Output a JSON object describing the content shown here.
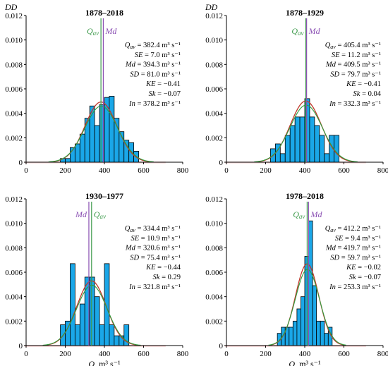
{
  "figure": {
    "y_label": "DD",
    "x_label": "Q, m³ s⁻¹",
    "x_ticks": [
      0,
      200,
      400,
      600,
      800
    ],
    "y_ticks": [
      "0",
      "0.002",
      "0.004",
      "0.006",
      "0.008",
      "0.010",
      "0.012"
    ]
  },
  "colors": {
    "bar_fill": "#1aa7e8",
    "bar_stroke": "#000000",
    "normal_curve": "#c0392b",
    "lognormal_curve": "#2e9e3e",
    "qav_line": "#3d9a4b",
    "md_line": "#8a4fb3"
  },
  "chart_data": [
    {
      "type": "bar",
      "title": "1878–2018",
      "xlim": [
        0,
        800
      ],
      "ylim": [
        0,
        0.012
      ],
      "bin_width": 25,
      "bins": [
        {
          "x": 175,
          "y": 0.0003
        },
        {
          "x": 200,
          "y": 0.0003
        },
        {
          "x": 225,
          "y": 0.0012
        },
        {
          "x": 250,
          "y": 0.0015
        },
        {
          "x": 275,
          "y": 0.0023
        },
        {
          "x": 300,
          "y": 0.0036
        },
        {
          "x": 325,
          "y": 0.0046
        },
        {
          "x": 350,
          "y": 0.003
        },
        {
          "x": 375,
          "y": 0.0047
        },
        {
          "x": 400,
          "y": 0.0053
        },
        {
          "x": 425,
          "y": 0.0054
        },
        {
          "x": 450,
          "y": 0.0036
        },
        {
          "x": 475,
          "y": 0.0025
        },
        {
          "x": 500,
          "y": 0.0018
        },
        {
          "x": 525,
          "y": 0.0016
        },
        {
          "x": 550,
          "y": 0.0009
        }
      ],
      "normal": {
        "mean": 382.4,
        "sd": 81.0
      },
      "qav": 382.4,
      "md": 394.3,
      "qav_label": "Qav",
      "md_label": "Md",
      "label_order": "qav-md",
      "stats": [
        "Qav = 382.4 m³ s⁻¹",
        "SE = 7.0 m³ s⁻¹",
        "Md = 394.3 m³ s⁻¹",
        "SD = 81.0 m³ s⁻¹",
        "KE = −0.41",
        "Sk = −0.07",
        "In = 378.2 m³ s⁻¹"
      ]
    },
    {
      "type": "bar",
      "title": "1878–1929",
      "xlim": [
        0,
        800
      ],
      "ylim": [
        0,
        0.012
      ],
      "bin_width": 25,
      "bins": [
        {
          "x": 225,
          "y": 0.0011
        },
        {
          "x": 250,
          "y": 0.0015
        },
        {
          "x": 275,
          "y": 0.0007
        },
        {
          "x": 300,
          "y": 0.0022
        },
        {
          "x": 325,
          "y": 0.003
        },
        {
          "x": 350,
          "y": 0.0037
        },
        {
          "x": 375,
          "y": 0.0037
        },
        {
          "x": 400,
          "y": 0.0052
        },
        {
          "x": 425,
          "y": 0.0037
        },
        {
          "x": 450,
          "y": 0.003
        },
        {
          "x": 475,
          "y": 0.0022
        },
        {
          "x": 500,
          "y": 0.0007
        },
        {
          "x": 525,
          "y": 0.0022
        },
        {
          "x": 550,
          "y": 0.0022
        }
      ],
      "normal": {
        "mean": 405.4,
        "sd": 79.7
      },
      "qav": 405.4,
      "md": 409.5,
      "qav_label": "Qav",
      "md_label": "Md",
      "label_order": "qav-md",
      "stats": [
        "Qav = 405.4 m³ s⁻¹",
        "SE = 11.2 m³ s⁻¹",
        "Md = 409.5 m³ s⁻¹",
        "SD = 79.7 m³ s⁻¹",
        "KE = −0.41",
        "Sk = 0.04",
        "In = 332.3 m³ s⁻¹"
      ]
    },
    {
      "type": "bar",
      "title": "1930–1977",
      "xlim": [
        0,
        800
      ],
      "ylim": [
        0,
        0.012
      ],
      "bin_width": 25,
      "bins": [
        {
          "x": 175,
          "y": 0.0017
        },
        {
          "x": 200,
          "y": 0.002
        },
        {
          "x": 225,
          "y": 0.0067
        },
        {
          "x": 250,
          "y": 0.0017
        },
        {
          "x": 275,
          "y": 0.0034
        },
        {
          "x": 300,
          "y": 0.0056
        },
        {
          "x": 325,
          "y": 0.0056
        },
        {
          "x": 350,
          "y": 0.004
        },
        {
          "x": 375,
          "y": 0.0017
        },
        {
          "x": 400,
          "y": 0.0067
        },
        {
          "x": 425,
          "y": 0.0017
        },
        {
          "x": 450,
          "y": 0.0008
        },
        {
          "x": 475,
          "y": 0.0008
        },
        {
          "x": 500,
          "y": 0.0017
        }
      ],
      "normal": {
        "mean": 334.4,
        "sd": 75.4
      },
      "qav": 334.4,
      "md": 320.6,
      "qav_label": "Qav",
      "md_label": "Md",
      "label_order": "md-qav",
      "stats": [
        "Qav = 334.4 m³ s⁻¹",
        "SE = 10.9 m³ s⁻¹",
        "Md = 320.6 m³ s⁻¹",
        "SD = 75.4 m³ s⁻¹",
        "KE = −0.44",
        "Sk = 0.29",
        "In = 321.8 m³ s⁻¹"
      ]
    },
    {
      "type": "bar",
      "title": "1978–2018",
      "xlim": [
        0,
        800
      ],
      "ylim": [
        0,
        0.012
      ],
      "bin_width": 20,
      "bins": [
        {
          "x": 260,
          "y": 0.001
        },
        {
          "x": 280,
          "y": 0.0015
        },
        {
          "x": 300,
          "y": 0.0015
        },
        {
          "x": 320,
          "y": 0.0015
        },
        {
          "x": 340,
          "y": 0.002
        },
        {
          "x": 360,
          "y": 0.003
        },
        {
          "x": 380,
          "y": 0.004
        },
        {
          "x": 400,
          "y": 0.0073
        },
        {
          "x": 420,
          "y": 0.0102
        },
        {
          "x": 440,
          "y": 0.0049
        },
        {
          "x": 460,
          "y": 0.002
        },
        {
          "x": 480,
          "y": 0.002
        },
        {
          "x": 500,
          "y": 0.001
        },
        {
          "x": 520,
          "y": 0.0015
        }
      ],
      "normal": {
        "mean": 412.2,
        "sd": 59.7
      },
      "qav": 412.2,
      "md": 419.7,
      "qav_label": "Qav",
      "md_label": "Md",
      "label_order": "qav-md",
      "stats": [
        "Qav = 412.2 m³ s⁻¹",
        "SE = 9.4 m³ s⁻¹",
        "Md = 419.7 m³ s⁻¹",
        "SD = 59.7 m³ s⁻¹",
        "KE = −0.02",
        "Sk = −0.07",
        "In = 253.3 m³ s⁻¹"
      ]
    }
  ]
}
